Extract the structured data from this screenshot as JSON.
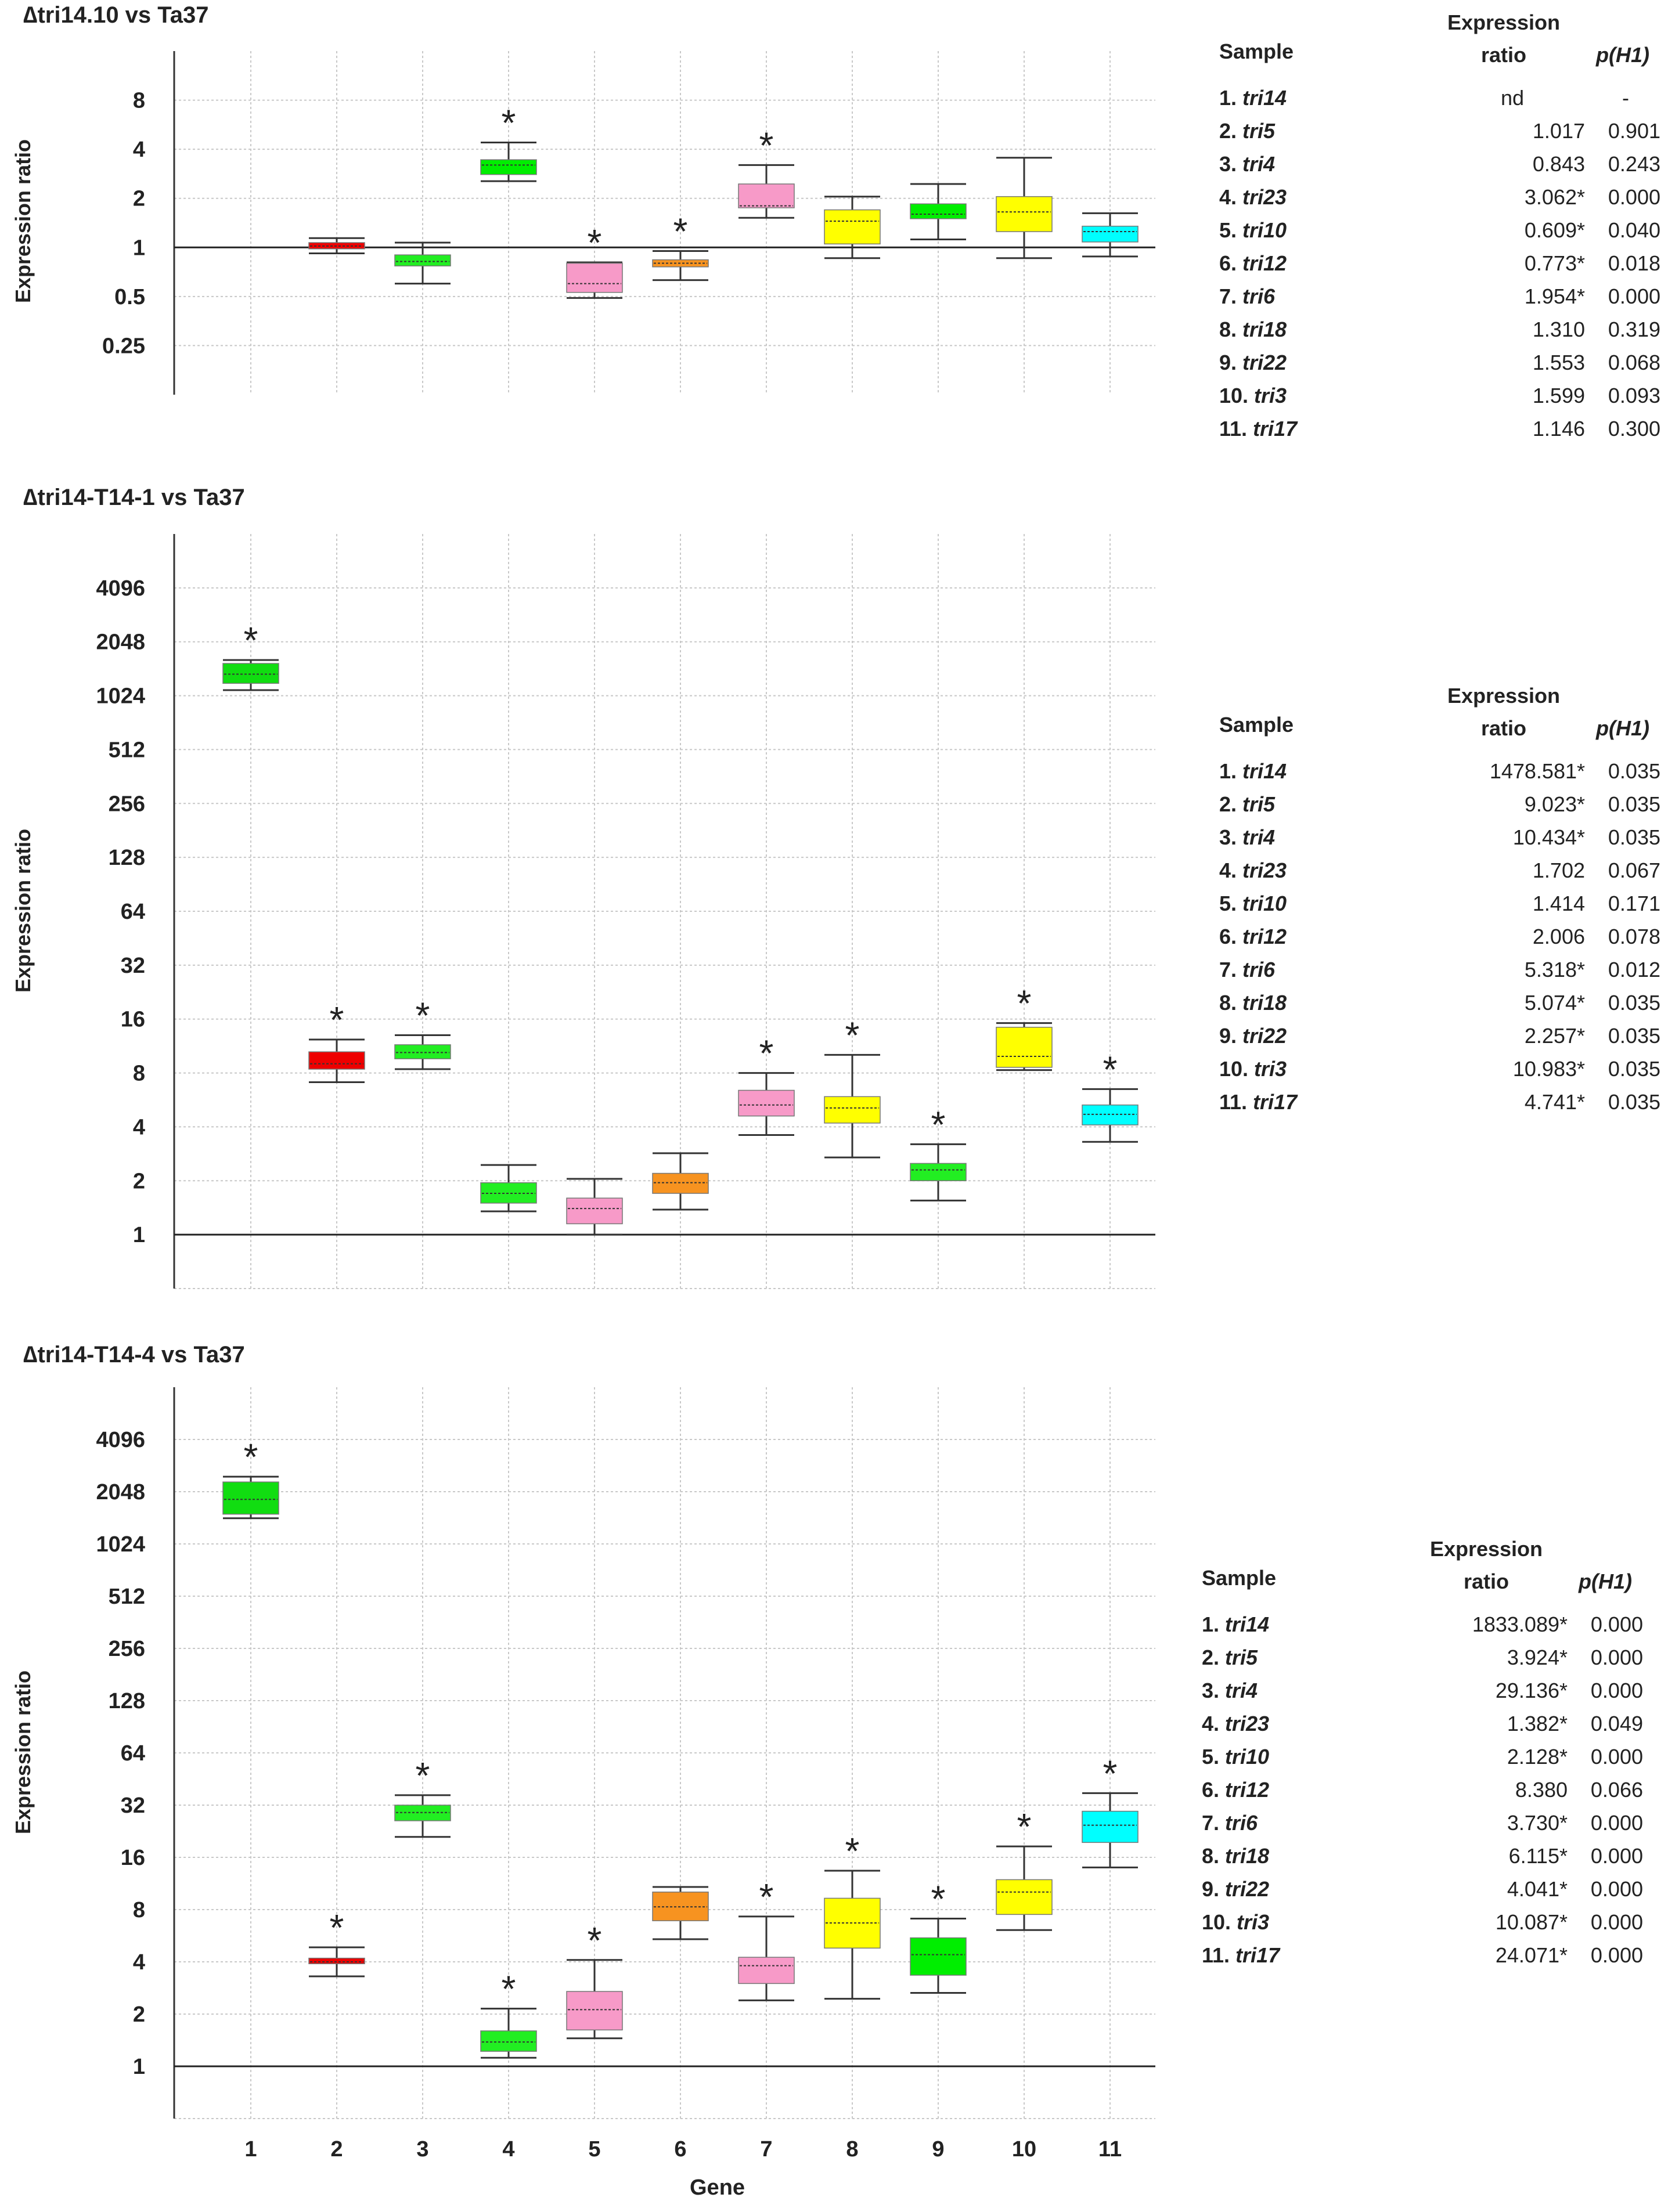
{
  "figure": {
    "x_axis_label": "Gene",
    "x_ticks": [
      "1",
      "2",
      "3",
      "4",
      "5",
      "6",
      "7",
      "8",
      "9",
      "10",
      "11"
    ],
    "y_axis_label": "Expression ratio",
    "table_headers": {
      "sample": "Sample",
      "ratio_line1": "Expression",
      "ratio_line2": "ratio",
      "p": "p(H1)"
    }
  },
  "chart_data": [
    {
      "type": "boxplot",
      "title": "∆tri14.10 vs Ta37",
      "ylabel": "Expression ratio",
      "xlabel": "Gene",
      "y_scale": "log2",
      "ylim": [
        0.125,
        16
      ],
      "y_ticks": [
        "0.25",
        "0.5",
        "1",
        "2",
        "4",
        "8"
      ],
      "y_tick_values": [
        0.25,
        0.5,
        1,
        2,
        4,
        8
      ],
      "reference_line": 1,
      "boxes": [
        {
          "gene": 1,
          "present": false
        },
        {
          "gene": 2,
          "color": "#ee0000",
          "min": 0.92,
          "q1": 0.98,
          "median": 1.02,
          "q3": 1.07,
          "max": 1.14,
          "significant": false
        },
        {
          "gene": 3,
          "color": "#22ee22",
          "min": 0.6,
          "q1": 0.77,
          "median": 0.82,
          "q3": 0.9,
          "max": 1.07,
          "significant": false
        },
        {
          "gene": 4,
          "color": "#00ee00",
          "min": 2.55,
          "q1": 2.8,
          "median": 3.2,
          "q3": 3.45,
          "max": 4.4,
          "significant": true
        },
        {
          "gene": 5,
          "color": "#f79ac8",
          "min": 0.49,
          "q1": 0.53,
          "median": 0.6,
          "q3": 0.8,
          "max": 0.81,
          "significant": true
        },
        {
          "gene": 6,
          "color": "#f79320",
          "min": 0.63,
          "q1": 0.76,
          "median": 0.8,
          "q3": 0.84,
          "max": 0.95,
          "significant": true
        },
        {
          "gene": 7,
          "color": "#f79ac8",
          "min": 1.52,
          "q1": 1.75,
          "median": 1.8,
          "q3": 2.45,
          "max": 3.2,
          "significant": true
        },
        {
          "gene": 8,
          "color": "#ffff00",
          "min": 0.86,
          "q1": 1.05,
          "median": 1.45,
          "q3": 1.7,
          "max": 2.05,
          "significant": false
        },
        {
          "gene": 9,
          "color": "#00ee00",
          "min": 1.12,
          "q1": 1.5,
          "median": 1.6,
          "q3": 1.85,
          "max": 2.45,
          "significant": false
        },
        {
          "gene": 10,
          "color": "#ffff00",
          "min": 0.86,
          "q1": 1.25,
          "median": 1.65,
          "q3": 2.05,
          "max": 3.55,
          "significant": false
        },
        {
          "gene": 11,
          "color": "#00ffff",
          "min": 0.88,
          "q1": 1.08,
          "median": 1.25,
          "q3": 1.35,
          "max": 1.62,
          "significant": false
        }
      ],
      "table": [
        {
          "num": "1.",
          "gene": "tri14",
          "ratio": "nd",
          "p": "-"
        },
        {
          "num": "2.",
          "gene": "tri5",
          "ratio": "1.017",
          "p": "0.901"
        },
        {
          "num": "3.",
          "gene": "tri4",
          "ratio": "0.843",
          "p": "0.243"
        },
        {
          "num": "4.",
          "gene": "tri23",
          "ratio": "3.062*",
          "p": "0.000"
        },
        {
          "num": "5.",
          "gene": "tri10",
          "ratio": "0.609*",
          "p": "0.040"
        },
        {
          "num": "6.",
          "gene": "tri12",
          "ratio": "0.773*",
          "p": "0.018"
        },
        {
          "num": "7.",
          "gene": "tri6",
          "ratio": "1.954*",
          "p": "0.000"
        },
        {
          "num": "8.",
          "gene": "tri18",
          "ratio": "1.310",
          "p": "0.319"
        },
        {
          "num": "9.",
          "gene": "tri22",
          "ratio": "1.553",
          "p": "0.068"
        },
        {
          "num": "10.",
          "gene": "tri3",
          "ratio": "1.599",
          "p": "0.093"
        },
        {
          "num": "11.",
          "gene": "tri17",
          "ratio": "1.146",
          "p": "0.300"
        }
      ]
    },
    {
      "type": "boxplot",
      "title": "∆tri14-T14-1 vs Ta37",
      "ylabel": "Expression ratio",
      "xlabel": "Gene",
      "y_scale": "log2",
      "ylim": [
        0.5,
        8192
      ],
      "y_ticks": [
        "1",
        "2",
        "4",
        "8",
        "16",
        "32",
        "64",
        "128",
        "256",
        "512",
        "1024",
        "2048",
        "4096"
      ],
      "y_tick_values": [
        1,
        2,
        4,
        8,
        16,
        32,
        64,
        128,
        256,
        512,
        1024,
        2048,
        4096
      ],
      "reference_line": 1,
      "boxes": [
        {
          "gene": 1,
          "color": "#11dd11",
          "min": 1100,
          "q1": 1200,
          "median": 1350,
          "q3": 1550,
          "max": 1620,
          "significant": true
        },
        {
          "gene": 2,
          "color": "#ee0000",
          "min": 7.1,
          "q1": 8.4,
          "median": 9.0,
          "q3": 10.5,
          "max": 12.3,
          "significant": true
        },
        {
          "gene": 3,
          "color": "#22ee22",
          "min": 8.4,
          "q1": 9.6,
          "median": 10.4,
          "q3": 11.5,
          "max": 13.0,
          "significant": true
        },
        {
          "gene": 4,
          "color": "#22ee22",
          "min": 1.35,
          "q1": 1.5,
          "median": 1.7,
          "q3": 1.95,
          "max": 2.45,
          "significant": false
        },
        {
          "gene": 5,
          "color": "#f79ac8",
          "min": 1.0,
          "q1": 1.15,
          "median": 1.4,
          "q3": 1.6,
          "max": 2.05,
          "significant": false
        },
        {
          "gene": 6,
          "color": "#f79320",
          "min": 1.38,
          "q1": 1.7,
          "median": 1.95,
          "q3": 2.2,
          "max": 2.85,
          "significant": false
        },
        {
          "gene": 7,
          "color": "#f79ac8",
          "min": 3.6,
          "q1": 4.6,
          "median": 5.3,
          "q3": 6.4,
          "max": 8.0,
          "significant": true
        },
        {
          "gene": 8,
          "color": "#ffff00",
          "min": 2.7,
          "q1": 4.2,
          "median": 5.1,
          "q3": 5.9,
          "max": 10.1,
          "significant": true
        },
        {
          "gene": 9,
          "color": "#22ee22",
          "min": 1.55,
          "q1": 2.0,
          "median": 2.3,
          "q3": 2.5,
          "max": 3.2,
          "significant": true
        },
        {
          "gene": 10,
          "color": "#ffff00",
          "min": 8.3,
          "q1": 8.6,
          "median": 9.9,
          "q3": 14.4,
          "max": 15.2,
          "significant": true
        },
        {
          "gene": 11,
          "color": "#00ffff",
          "min": 3.3,
          "q1": 4.1,
          "median": 4.7,
          "q3": 5.3,
          "max": 6.5,
          "significant": true
        }
      ],
      "table": [
        {
          "num": "1.",
          "gene": "tri14",
          "ratio": "1478.581*",
          "p": "0.035"
        },
        {
          "num": "2.",
          "gene": "tri5",
          "ratio": "9.023*",
          "p": "0.035"
        },
        {
          "num": "3.",
          "gene": "tri4",
          "ratio": "10.434*",
          "p": "0.035"
        },
        {
          "num": "4.",
          "gene": "tri23",
          "ratio": "1.702",
          "p": "0.067"
        },
        {
          "num": "5.",
          "gene": "tri10",
          "ratio": "1.414",
          "p": "0.171"
        },
        {
          "num": "6.",
          "gene": "tri12",
          "ratio": "2.006",
          "p": "0.078"
        },
        {
          "num": "7.",
          "gene": "tri6",
          "ratio": "5.318*",
          "p": "0.012"
        },
        {
          "num": "8.",
          "gene": "tri18",
          "ratio": "5.074*",
          "p": "0.035"
        },
        {
          "num": "9.",
          "gene": "tri22",
          "ratio": "2.257*",
          "p": "0.035"
        },
        {
          "num": "10.",
          "gene": "tri3",
          "ratio": "10.983*",
          "p": "0.035"
        },
        {
          "num": "11.",
          "gene": "tri17",
          "ratio": "4.741*",
          "p": "0.035"
        }
      ]
    },
    {
      "type": "boxplot",
      "title": "∆tri14-T14-4 vs Ta37",
      "ylabel": "Expression ratio",
      "xlabel": "Gene",
      "y_scale": "log2",
      "ylim": [
        0.5,
        8192
      ],
      "y_ticks": [
        "1",
        "2",
        "4",
        "8",
        "16",
        "32",
        "64",
        "128",
        "256",
        "512",
        "1024",
        "2048",
        "4096"
      ],
      "y_tick_values": [
        1,
        2,
        4,
        8,
        16,
        32,
        64,
        128,
        256,
        512,
        1024,
        2048,
        4096
      ],
      "reference_line": 1,
      "boxes": [
        {
          "gene": 1,
          "color": "#11dd11",
          "min": 1440,
          "q1": 1520,
          "median": 1850,
          "q3": 2330,
          "max": 2500,
          "significant": true
        },
        {
          "gene": 2,
          "color": "#ee0000",
          "min": 3.3,
          "q1": 3.9,
          "median": 4.0,
          "q3": 4.2,
          "max": 4.85,
          "significant": true
        },
        {
          "gene": 3,
          "color": "#22ee22",
          "min": 21,
          "q1": 26,
          "median": 29,
          "q3": 32,
          "max": 36.5,
          "significant": true
        },
        {
          "gene": 4,
          "color": "#22ee22",
          "min": 1.12,
          "q1": 1.22,
          "median": 1.38,
          "q3": 1.6,
          "max": 2.15,
          "significant": true
        },
        {
          "gene": 5,
          "color": "#f79ac8",
          "min": 1.45,
          "q1": 1.62,
          "median": 2.12,
          "q3": 2.7,
          "max": 4.1,
          "significant": true
        },
        {
          "gene": 6,
          "color": "#f79320",
          "min": 5.4,
          "q1": 6.9,
          "median": 8.3,
          "q3": 10.1,
          "max": 10.8,
          "significant": false
        },
        {
          "gene": 7,
          "color": "#f79ac8",
          "min": 2.4,
          "q1": 3.0,
          "median": 3.8,
          "q3": 4.25,
          "max": 7.3,
          "significant": true
        },
        {
          "gene": 8,
          "color": "#ffff00",
          "min": 2.45,
          "q1": 4.8,
          "median": 6.7,
          "q3": 9.3,
          "max": 13.4,
          "significant": true
        },
        {
          "gene": 9,
          "color": "#00ee00",
          "min": 2.65,
          "q1": 3.35,
          "median": 4.4,
          "q3": 5.5,
          "max": 7.1,
          "significant": true
        },
        {
          "gene": 10,
          "color": "#ffff00",
          "min": 6.1,
          "q1": 7.5,
          "median": 10.1,
          "q3": 11.9,
          "max": 18.5,
          "significant": true
        },
        {
          "gene": 11,
          "color": "#00ffff",
          "min": 14,
          "q1": 19.5,
          "median": 24.5,
          "q3": 29.5,
          "max": 37.5,
          "significant": true
        }
      ],
      "table": [
        {
          "num": "1.",
          "gene": "tri14",
          "ratio": "1833.089*",
          "p": "0.000"
        },
        {
          "num": "2.",
          "gene": "tri5",
          "ratio": "3.924*",
          "p": "0.000"
        },
        {
          "num": "3.",
          "gene": "tri4",
          "ratio": "29.136*",
          "p": "0.000"
        },
        {
          "num": "4.",
          "gene": "tri23",
          "ratio": "1.382*",
          "p": "0.049"
        },
        {
          "num": "5.",
          "gene": "tri10",
          "ratio": "2.128*",
          "p": "0.000"
        },
        {
          "num": "6.",
          "gene": "tri12",
          "ratio": "8.380",
          "p": "0.066"
        },
        {
          "num": "7.",
          "gene": "tri6",
          "ratio": "3.730*",
          "p": "0.000"
        },
        {
          "num": "8.",
          "gene": "tri18",
          "ratio": "6.115*",
          "p": "0.000"
        },
        {
          "num": "9.",
          "gene": "tri22",
          "ratio": "4.041*",
          "p": "0.000"
        },
        {
          "num": "10.",
          "gene": "tri3",
          "ratio": "10.087*",
          "p": "0.000"
        },
        {
          "num": "11.",
          "gene": "tri17",
          "ratio": "24.071*",
          "p": "0.000"
        }
      ]
    }
  ]
}
